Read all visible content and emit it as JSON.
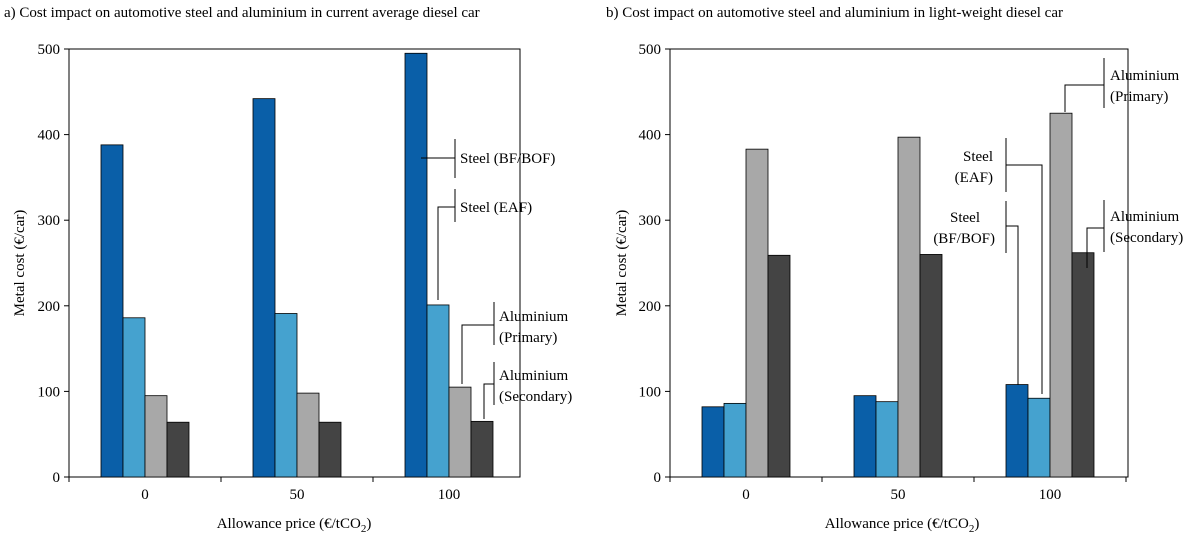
{
  "chart_data": [
    {
      "type": "bar",
      "title": "a) Cost impact on automotive steel and aluminium in current average diesel car",
      "xlabel": "Allowance price (€/tCO",
      "xlabel_sub": "2",
      "xlabel_close": ")",
      "ylabel": "Metal cost (€/car)",
      "ylim": [
        0,
        500
      ],
      "yticks": [
        "0",
        "100",
        "200",
        "300",
        "400",
        "500"
      ],
      "categories": [
        "0",
        "50",
        "100"
      ],
      "series": [
        {
          "name": "Steel (BF/BOF)",
          "color": "#0a5fa8",
          "values": [
            388,
            442,
            495
          ]
        },
        {
          "name": "Steel (EAF)",
          "color": "#45a2cf",
          "values": [
            186,
            191,
            201
          ]
        },
        {
          "name": "Aluminium (Primary)",
          "color": "#a8a8a8",
          "values": [
            95,
            98,
            105
          ]
        },
        {
          "name": "Aluminium (Secondary)",
          "color": "#444444",
          "values": [
            64,
            64,
            65
          ]
        }
      ],
      "annotations": [
        {
          "lines": [
            "Steel (BF/BOF)"
          ]
        },
        {
          "lines": [
            "Steel (EAF)"
          ]
        },
        {
          "lines": [
            "Aluminium",
            "(Primary)"
          ]
        },
        {
          "lines": [
            "Aluminium",
            "(Secondary)"
          ]
        }
      ]
    },
    {
      "type": "bar",
      "title": "b) Cost impact on automotive steel and aluminium in light-weight diesel car",
      "xlabel": "Allowance price (€/tCO",
      "xlabel_sub": "2",
      "xlabel_close": ")",
      "ylabel": "Metal cost (€/car)",
      "ylim": [
        0,
        500
      ],
      "yticks": [
        "0",
        "100",
        "200",
        "300",
        "400",
        "500"
      ],
      "categories": [
        "0",
        "50",
        "100"
      ],
      "series": [
        {
          "name": "Steel (BF/BOF)",
          "color": "#0a5fa8",
          "values": [
            82,
            95,
            108
          ]
        },
        {
          "name": "Steel (EAF)",
          "color": "#45a2cf",
          "values": [
            86,
            88,
            92
          ]
        },
        {
          "name": "Aluminium (Primary)",
          "color": "#a8a8a8",
          "values": [
            383,
            397,
            425
          ]
        },
        {
          "name": "Aluminium (Secondary)",
          "color": "#444444",
          "values": [
            259,
            260,
            262
          ]
        }
      ],
      "annotations": [
        {
          "lines": [
            "Aluminium",
            "(Primary)"
          ]
        },
        {
          "lines": [
            "Steel",
            "(EAF)"
          ]
        },
        {
          "lines": [
            "Steel",
            "(BF/BOF)"
          ]
        },
        {
          "lines": [
            "Aluminium",
            "(Secondary)"
          ]
        }
      ]
    }
  ]
}
